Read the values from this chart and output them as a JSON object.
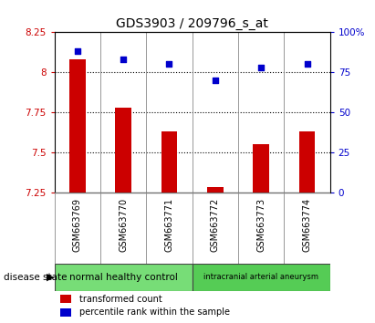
{
  "title": "GDS3903 / 209796_s_at",
  "samples": [
    "GSM663769",
    "GSM663770",
    "GSM663771",
    "GSM663772",
    "GSM663773",
    "GSM663774"
  ],
  "transformed_counts": [
    8.08,
    7.78,
    7.63,
    7.28,
    7.55,
    7.63
  ],
  "percentile_ranks": [
    88,
    83,
    80,
    70,
    78,
    80
  ],
  "ylim_left": [
    7.25,
    8.25
  ],
  "ylim_right": [
    0,
    100
  ],
  "yticks_left": [
    7.25,
    7.5,
    7.75,
    8.0,
    8.25
  ],
  "yticks_right": [
    0,
    25,
    50,
    75,
    100
  ],
  "ytick_labels_left": [
    "7.25",
    "7.5",
    "7.75",
    "8",
    "8.25"
  ],
  "ytick_labels_right": [
    "0",
    "25",
    "50",
    "75",
    "100%"
  ],
  "bar_color": "#cc0000",
  "scatter_color": "#0000cc",
  "gridline_ticks": [
    7.5,
    7.75,
    8.0
  ],
  "disease_groups": [
    {
      "label": "normal healthy control",
      "n_samples": 3,
      "color": "#77dd77"
    },
    {
      "label": "intracranial arterial aneurysm",
      "n_samples": 3,
      "color": "#55cc55"
    }
  ],
  "legend_bar_label": "transformed count",
  "legend_scatter_label": "percentile rank within the sample",
  "xlabel_disease": "disease state",
  "xtick_bg": "#c8c8c8",
  "bar_width": 0.35
}
